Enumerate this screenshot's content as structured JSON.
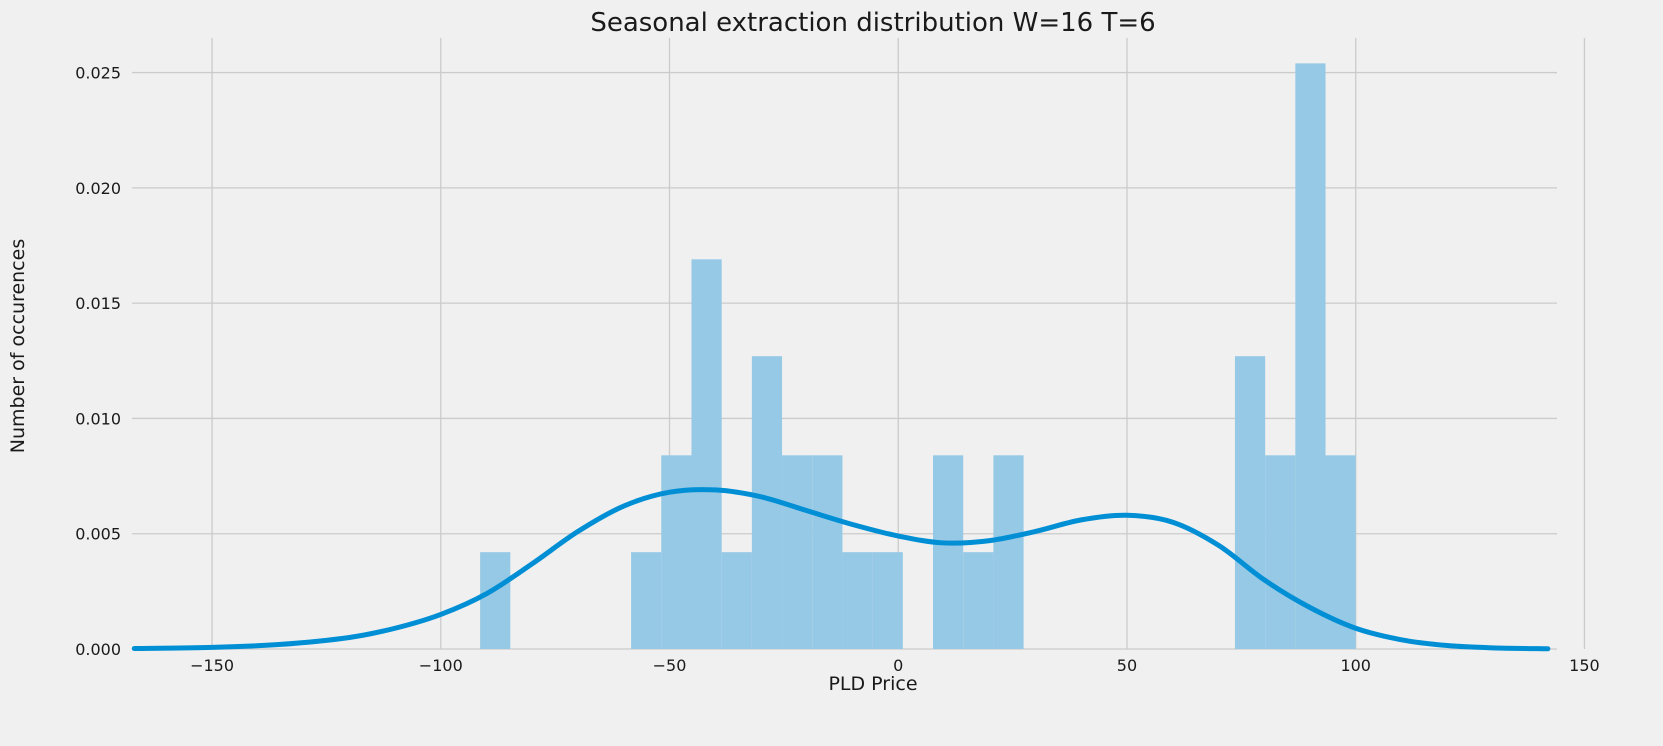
{
  "chart_data": {
    "type": "bar",
    "title": "Seasonal extraction distribution W=16 T=6",
    "xlabel": "PLD Price",
    "ylabel": "Number of occurences",
    "xlim": [
      -167.5,
      144
    ],
    "ylim": [
      0,
      0.0265
    ],
    "xticks": [
      -150,
      -100,
      -50,
      0,
      50,
      100,
      150
    ],
    "xtick_labels": [
      "−150",
      "−100",
      "−50",
      "0",
      "50",
      "100",
      "150"
    ],
    "yticks": [
      0,
      0.005,
      0.01,
      0.015,
      0.02,
      0.025
    ],
    "ytick_labels": [
      "0.000",
      "0.005",
      "0.010",
      "0.015",
      "0.020",
      "0.025"
    ],
    "grid": true,
    "histogram": {
      "bin_start": -91.4,
      "bin_width": 6.6,
      "values": [
        0.0042,
        0,
        0,
        0,
        0,
        0.0042,
        0.0084,
        0.0169,
        0.0042,
        0.0127,
        0.0084,
        0.0084,
        0.0042,
        0.0042,
        0,
        0.0084,
        0.0042,
        0.0084,
        0,
        0,
        0,
        0,
        0,
        0,
        0,
        0.0127,
        0.0084,
        0.0254,
        0.0084
      ],
      "color": "#95c9e6"
    },
    "kde": {
      "x": [
        -167,
        -150,
        -135,
        -120,
        -110,
        -100,
        -90,
        -80,
        -70,
        -60,
        -50,
        -40,
        -30,
        -20,
        -10,
        0,
        10,
        20,
        30,
        40,
        50,
        60,
        70,
        80,
        90,
        100,
        110,
        120,
        130,
        142
      ],
      "y": [
        2e-05,
        7e-05,
        0.0002,
        0.0005,
        0.0009,
        0.0015,
        0.0024,
        0.0037,
        0.0051,
        0.0062,
        0.0068,
        0.0069,
        0.0066,
        0.006,
        0.0054,
        0.0049,
        0.0046,
        0.0047,
        0.0051,
        0.0056,
        0.0058,
        0.0055,
        0.0045,
        0.003,
        0.0018,
        0.0009,
        0.0004,
        0.00015,
        5e-05,
        1e-05
      ],
      "color": "#008fd5"
    }
  }
}
